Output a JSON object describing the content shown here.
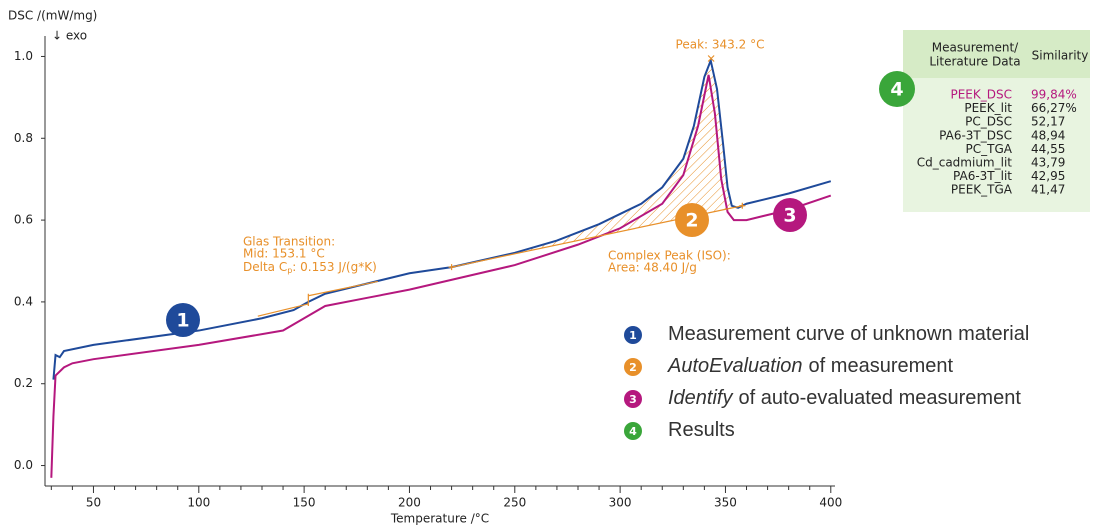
{
  "chart_data": {
    "type": "line",
    "y_label": "DSC /(mW/mg)",
    "exo_label": "↓ exo",
    "x_label": "Temperature /°C",
    "xlim": [
      27,
      402
    ],
    "ylim": [
      -0.05,
      1.05
    ],
    "xticks": [
      50,
      100,
      150,
      200,
      250,
      300,
      350,
      400
    ],
    "xminorticks": [
      30,
      40,
      60,
      70,
      80,
      90,
      110,
      120,
      130,
      140,
      160,
      170,
      180,
      190,
      210,
      220,
      230,
      240,
      260,
      270,
      280,
      290,
      310,
      320,
      330,
      340,
      360,
      370,
      380,
      390
    ],
    "yticks": [
      {
        "value": 0,
        "label": "0.0"
      },
      {
        "value": 0.2,
        "label": "0.2"
      },
      {
        "value": 0.4,
        "label": "0.4"
      },
      {
        "value": 0.6,
        "label": "0.6"
      },
      {
        "value": 0.8,
        "label": "0.8"
      },
      {
        "value": 1.0,
        "label": "1.0"
      }
    ],
    "series": [
      {
        "color": "#1f4a9a",
        "x": [
          31,
          32,
          34,
          36,
          50,
          100,
          130,
          145,
          152,
          160,
          180,
          200,
          220,
          250,
          270,
          290,
          300,
          310,
          320,
          330,
          335,
          340,
          343,
          346,
          349,
          351,
          353,
          356,
          360,
          380,
          400
        ],
        "values": [
          0.21,
          0.27,
          0.265,
          0.28,
          0.295,
          0.33,
          0.36,
          0.38,
          0.4,
          0.42,
          0.445,
          0.47,
          0.485,
          0.52,
          0.55,
          0.59,
          0.615,
          0.64,
          0.68,
          0.75,
          0.83,
          0.95,
          0.99,
          0.92,
          0.78,
          0.68,
          0.635,
          0.63,
          0.64,
          0.665,
          0.695
        ]
      },
      {
        "color": "#b5187e",
        "x": [
          30,
          31,
          32,
          36,
          40,
          50,
          100,
          140,
          150,
          160,
          180,
          200,
          250,
          280,
          300,
          320,
          330,
          337,
          342,
          345,
          348,
          351,
          354,
          360,
          380,
          400
        ],
        "values": [
          -0.03,
          0.12,
          0.22,
          0.24,
          0.25,
          0.26,
          0.295,
          0.33,
          0.36,
          0.39,
          0.41,
          0.43,
          0.49,
          0.54,
          0.58,
          0.64,
          0.71,
          0.83,
          0.955,
          0.86,
          0.7,
          0.62,
          0.6,
          0.6,
          0.625,
          0.66
        ]
      },
      {
        "color": "#e8902a",
        "x": [
          220,
          358
        ],
        "values": [
          0.485,
          0.635
        ]
      }
    ],
    "glass": {
      "title": "Glas Transition:",
      "mid": "Mid: 153.1 °C",
      "delta_prefix": "Delta C",
      "delta_sub": "p",
      "delta_suffix": ": 0.153 J/(g*K)"
    },
    "peak": {
      "label": "Peak: 343.2 °C",
      "x": 343.2,
      "y": 0.995
    },
    "complex": {
      "title": "Complex Peak (ISO):",
      "area": "Area: 48.40 J/g"
    },
    "markers": [
      {
        "label": "1",
        "color": "#1f4a9a"
      },
      {
        "label": "2",
        "color": "#e8902a"
      },
      {
        "label": "3",
        "color": "#b5187e"
      }
    ],
    "legend": [
      {
        "number": "1",
        "color": "#1f4a9a",
        "text": "Measurement curve of unknown material"
      },
      {
        "number": "2",
        "color": "#e8902a",
        "emphasis": "AutoEvaluation",
        "text": "of measurement"
      },
      {
        "number": "3",
        "color": "#b5187e",
        "emphasis": "Identify",
        "text": "of auto-evaluated measurement"
      },
      {
        "number": "4",
        "color": "#3aa63a",
        "text": "Results"
      }
    ]
  },
  "results": {
    "badge": "4",
    "header_1a": "Measurement/",
    "header_1b": "Literature Data",
    "header_2": "Similarity",
    "rows": [
      [
        "PEEK_DSC",
        "99,84%"
      ],
      [
        "PEEK_lit",
        "66,27%"
      ],
      [
        "PC_DSC",
        "52,17"
      ],
      [
        "PA6-3T_DSC",
        "48,94"
      ],
      [
        "PC_TGA",
        "44,55"
      ],
      [
        "Cd_cadmium_lit",
        "43,79"
      ],
      [
        "PA6-3T_lit",
        "42,95"
      ],
      [
        "PEEK_TGA",
        "41,47"
      ]
    ]
  }
}
